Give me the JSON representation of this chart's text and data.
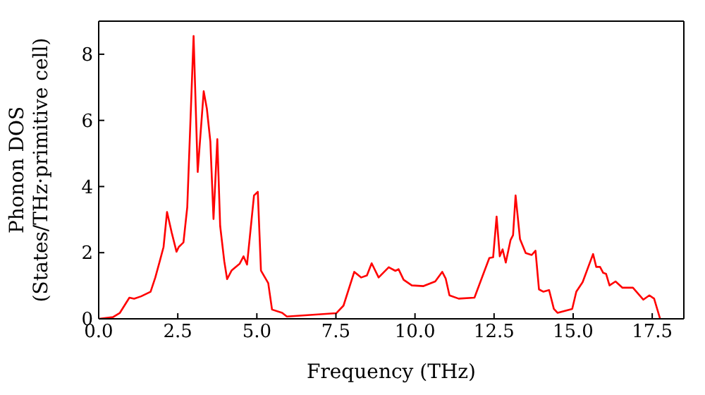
{
  "chart_data": {
    "type": "line",
    "xlabel": "Frequency (THz)",
    "ylabel": "Phonon DOS\n(States/THz·primitive cell)",
    "x": [
      0,
      0.45,
      0.67,
      0.97,
      1.12,
      1.34,
      1.64,
      1.79,
      1.93,
      2.05,
      2.16,
      2.31,
      2.46,
      2.53,
      2.68,
      2.8,
      3.0,
      3.13,
      3.32,
      3.42,
      3.53,
      3.63,
      3.75,
      3.84,
      3.97,
      4.06,
      4.2,
      4.46,
      4.58,
      4.69,
      4.91,
      5.03,
      5.13,
      5.36,
      5.48,
      5.8,
      5.95,
      7.51,
      7.74,
      8.08,
      8.3,
      8.48,
      8.63,
      8.85,
      9.17,
      9.38,
      9.48,
      9.64,
      9.9,
      10.27,
      10.64,
      10.86,
      10.97,
      11.09,
      11.38,
      11.88,
      12.13,
      12.35,
      12.47,
      12.58,
      12.68,
      12.77,
      12.87,
      13.02,
      13.1,
      13.18,
      13.32,
      13.5,
      13.69,
      13.81,
      13.92,
      14.06,
      14.24,
      14.39,
      14.51,
      14.97,
      15.1,
      15.3,
      15.63,
      15.73,
      15.85,
      15.95,
      16.04,
      16.15,
      16.34,
      16.56,
      16.89,
      17.22,
      17.41,
      17.56,
      17.75
    ],
    "series": [
      {
        "color": "#ff0000",
        "values": [
          0,
          0.05,
          0.18,
          0.64,
          0.61,
          0.68,
          0.82,
          1.25,
          1.74,
          2.17,
          3.23,
          2.6,
          2.03,
          2.17,
          2.31,
          3.38,
          8.55,
          4.44,
          6.88,
          6.35,
          5.36,
          3.02,
          5.43,
          2.81,
          1.74,
          1.2,
          1.46,
          1.67,
          1.89,
          1.64,
          3.73,
          3.84,
          1.46,
          1.08,
          0.28,
          0.18,
          0.07,
          0.17,
          0.4,
          1.42,
          1.25,
          1.31,
          1.68,
          1.25,
          1.56,
          1.45,
          1.5,
          1.18,
          1.01,
          0.99,
          1.13,
          1.42,
          1.22,
          0.71,
          0.61,
          0.64,
          1.28,
          1.84,
          1.86,
          3.09,
          1.89,
          2.1,
          1.7,
          2.38,
          2.53,
          3.73,
          2.41,
          1.99,
          1.93,
          2.06,
          0.89,
          0.82,
          0.87,
          0.3,
          0.18,
          0.3,
          0.82,
          1.11,
          1.96,
          1.57,
          1.57,
          1.39,
          1.36,
          1.01,
          1.13,
          0.94,
          0.94,
          0.58,
          0.71,
          0.61,
          0
        ]
      }
    ],
    "xlim": [
      0,
      18.5
    ],
    "ylim": [
      0,
      9
    ],
    "xticks": [
      {
        "value": 0,
        "label": "0.0"
      },
      2.5,
      {
        "value": 5,
        "label": "5.0"
      },
      7.5,
      {
        "value": 10,
        "label": "10.0"
      },
      12.5,
      {
        "value": 15,
        "label": "15.0"
      },
      17.5
    ],
    "yticks": [
      0,
      2,
      4,
      6,
      8
    ],
    "grid": false,
    "legend": false,
    "marker": "none",
    "line_style": "solid"
  }
}
